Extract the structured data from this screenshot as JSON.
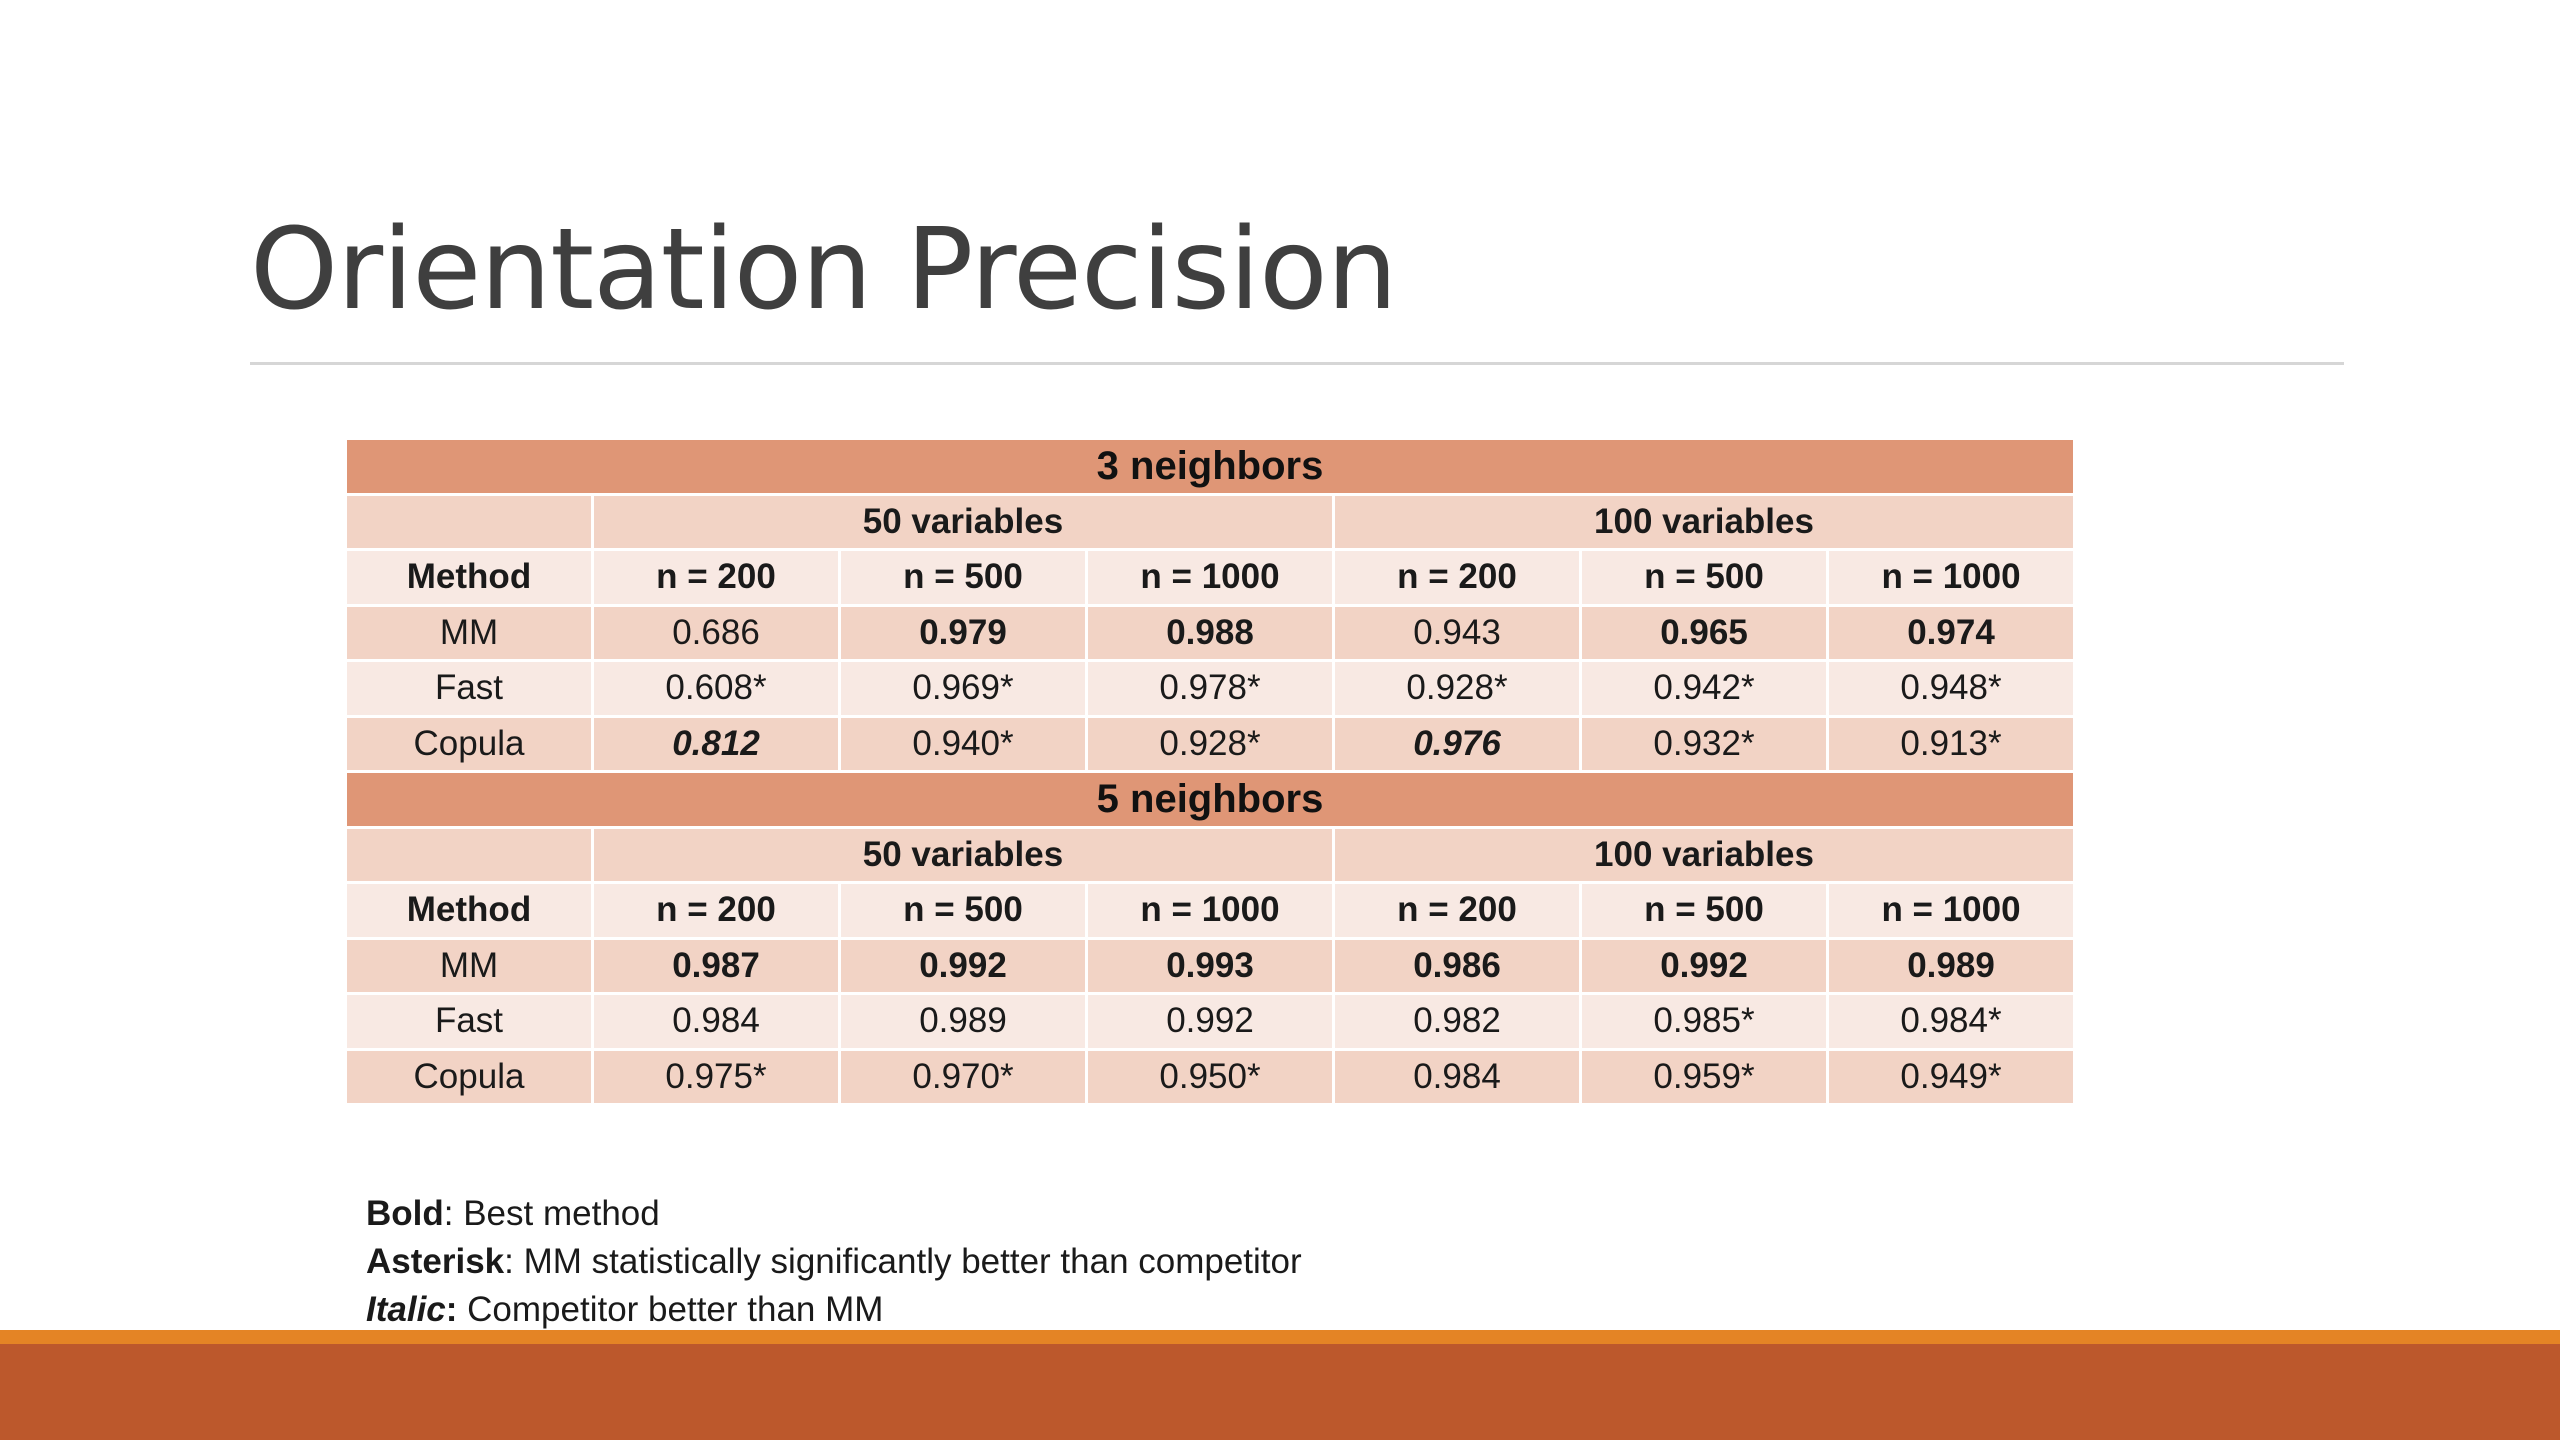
{
  "slide": {
    "title": "Orientation Precision"
  },
  "table": {
    "sections": [
      {
        "title": "3 neighbors",
        "groups": [
          "50 variables",
          "100 variables"
        ],
        "method_header": "Method",
        "sample_headers": [
          "n = 200",
          "n = 500",
          "n = 1000",
          "n = 200",
          "n = 500",
          "n = 1000"
        ],
        "rows": [
          {
            "method": "MM",
            "values": [
              "0.686",
              "0.979",
              "0.988",
              "0.943",
              "0.965",
              "0.974"
            ]
          },
          {
            "method": "Fast",
            "values": [
              "0.608*",
              "0.969*",
              "0.978*",
              "0.928*",
              "0.942*",
              "0.948*"
            ]
          },
          {
            "method": "Copula",
            "values": [
              "0.812",
              "0.940*",
              "0.928*",
              "0.976",
              "0.932*",
              "0.913*"
            ]
          }
        ]
      },
      {
        "title": "5 neighbors",
        "groups": [
          "50 variables",
          "100 variables"
        ],
        "method_header": "Method",
        "sample_headers": [
          "n = 200",
          "n = 500",
          "n = 1000",
          "n = 200",
          "n = 500",
          "n = 1000"
        ],
        "rows": [
          {
            "method": "MM",
            "values": [
              "0.987",
              "0.992",
              "0.993",
              "0.986",
              "0.992",
              "0.989"
            ]
          },
          {
            "method": "Fast",
            "values": [
              "0.984",
              "0.989",
              "0.992",
              "0.982",
              "0.985*",
              "0.984*"
            ]
          },
          {
            "method": "Copula",
            "values": [
              "0.975*",
              "0.970*",
              "0.950*",
              "0.984",
              "0.959*",
              "0.949*"
            ]
          }
        ]
      }
    ]
  },
  "legend": {
    "bold_key": "Bold",
    "bold_text": ": Best method",
    "asterisk_key": "Asterisk",
    "asterisk_text": ": MM statistically significantly better than competitor",
    "italic_key": "Italic",
    "italic_colon": ":",
    "italic_text": " Competitor better than MM"
  },
  "colors": {
    "section_header": "#df9676",
    "row_dark": "#f2d3c5",
    "row_light": "#f8e9e3",
    "footer_stripe": "#e48425",
    "footer_band": "#bc582c",
    "title_text": "#3f3f3f"
  }
}
